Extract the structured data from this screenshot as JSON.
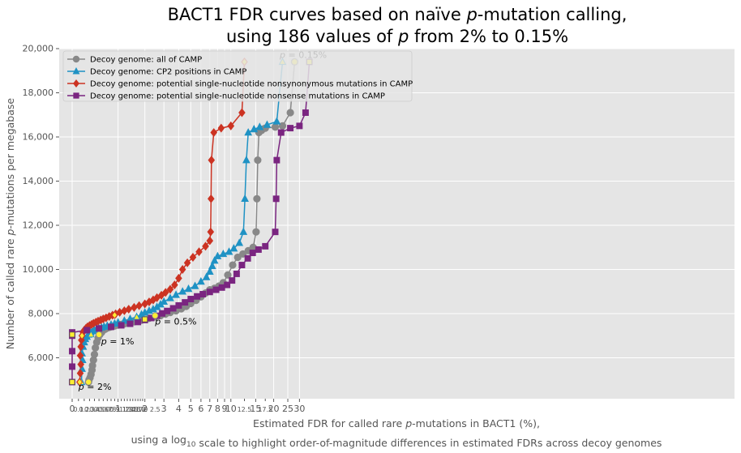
{
  "chart_data": {
    "type": "line",
    "title_line1": "BACT1 FDR curves based on naïve p-mutation calling,",
    "title_line2": "using 186 values of p from 2% to 0.15%",
    "xlabel_line1": "Estimated FDR for called rare p-mutations in BACT1 (%),",
    "xlabel_line2": "using a log10 scale to highlight order-of-magnitude differences in estimated FDRs across decoy genomes",
    "ylabel": "Number of called rare p-mutations per megabase",
    "x_scale": "log10(1 + FDR)",
    "ylim": [
      4300,
      20000
    ],
    "yticks": [
      {
        "value": 6000,
        "label": "6,000"
      },
      {
        "value": 8000,
        "label": "8,000"
      },
      {
        "value": 10000,
        "label": "10,000"
      },
      {
        "value": 12000,
        "label": "12,000"
      },
      {
        "value": 14000,
        "label": "14,000"
      },
      {
        "value": 16000,
        "label": "16,000"
      },
      {
        "value": 18000,
        "label": "18,000"
      },
      {
        "value": 20000,
        "label": "20,000"
      }
    ],
    "xticks_major": [
      {
        "value": 0,
        "label": "0"
      },
      {
        "value": 1,
        "label": "1"
      },
      {
        "value": 2,
        "label": "2"
      },
      {
        "value": 3,
        "label": "3"
      },
      {
        "value": 4,
        "label": "4"
      },
      {
        "value": 5,
        "label": "5"
      },
      {
        "value": 6,
        "label": "6"
      },
      {
        "value": 7,
        "label": "7"
      },
      {
        "value": 8,
        "label": "8"
      },
      {
        "value": 9,
        "label": "9"
      },
      {
        "value": 10,
        "label": "10"
      },
      {
        "value": 15,
        "label": "15"
      },
      {
        "value": 20,
        "label": "20"
      },
      {
        "value": 25,
        "label": "25"
      },
      {
        "value": 30,
        "label": "30"
      }
    ],
    "xticks_minor": [
      {
        "value": 0.1,
        "label": "0.1"
      },
      {
        "value": 0.2,
        "label": "0.2"
      },
      {
        "value": 0.3,
        "label": "0.3"
      },
      {
        "value": 0.4,
        "label": "0.4"
      },
      {
        "value": 0.5,
        "label": "0.5"
      },
      {
        "value": 0.6,
        "label": "0.6"
      },
      {
        "value": 0.7,
        "label": "0.7"
      },
      {
        "value": 0.8,
        "label": "0.8"
      },
      {
        "value": 0.9,
        "label": "0.9"
      },
      {
        "value": 1.1,
        "label": "1.1"
      },
      {
        "value": 1.2,
        "label": "1.2"
      },
      {
        "value": 1.3,
        "label": "1.3"
      },
      {
        "value": 1.4,
        "label": "1.4"
      },
      {
        "value": 1.5,
        "label": "1.5"
      },
      {
        "value": 1.6,
        "label": "1.6"
      },
      {
        "value": 1.7,
        "label": "1.7"
      },
      {
        "value": 1.8,
        "label": "1.8"
      },
      {
        "value": 1.9,
        "label": "1.9"
      },
      {
        "value": 2.5,
        "label": "2.5"
      },
      {
        "value": 12.5,
        "label": "12.5"
      },
      {
        "value": 17.5,
        "label": "17.5"
      }
    ],
    "grid": true,
    "legend_position": "top-left",
    "annotations": [
      {
        "text": "p = 2%",
        "x": 0.1,
        "y": 4550
      },
      {
        "text": "p = 1%",
        "x": 0.55,
        "y": 6600
      },
      {
        "text": "p = 0.5%",
        "x": 2.5,
        "y": 7500
      },
      {
        "text": "p = 0.15%",
        "x": 22,
        "y": 19570
      }
    ],
    "series": [
      {
        "name": "Decoy genome: all of CAMP",
        "color": "#888888",
        "marker": "circle",
        "x": [
          0.28,
          0.29,
          0.31,
          0.33,
          0.35,
          0.36,
          0.38,
          0.4,
          0.42,
          0.45,
          0.48,
          0.52,
          0.56,
          0.6,
          0.65,
          0.7,
          0.76,
          0.82,
          0.9,
          1.0,
          1.1,
          1.2,
          1.3,
          1.4,
          1.55,
          1.7,
          1.85,
          2.0,
          2.2,
          2.5,
          2.8,
          3.1,
          3.4,
          3.8,
          4.2,
          4.6,
          5.0,
          5.5,
          6.0,
          6.5,
          7.0,
          7.6,
          8.2,
          8.8,
          9.5,
          10.3,
          11.2,
          12.2,
          13.3,
          14.4,
          15.1,
          15.3,
          15.5,
          15.8,
          16.5,
          17.5,
          20.5,
          23.0,
          26.0,
          27.8
        ],
        "y": [
          4900,
          5000,
          5100,
          5250,
          5450,
          5650,
          5900,
          6150,
          6450,
          6700,
          6900,
          7050,
          7150,
          7250,
          7300,
          7350,
          7380,
          7410,
          7440,
          7480,
          7510,
          7540,
          7570,
          7600,
          7630,
          7660,
          7700,
          7740,
          7790,
          7850,
          7910,
          7980,
          8050,
          8130,
          8220,
          8330,
          8460,
          8600,
          8760,
          8930,
          9080,
          9150,
          9250,
          9400,
          9750,
          10200,
          10550,
          10700,
          10850,
          11000,
          11700,
          13200,
          14950,
          16200,
          16300,
          16400,
          16450,
          16500,
          17100,
          19400
        ]
      },
      {
        "name": "Decoy genome: CP2 positions in CAMP",
        "color": "#1f92c4",
        "marker": "triangle",
        "x": [
          0.15,
          0.16,
          0.17,
          0.16,
          0.18,
          0.2,
          0.22,
          0.25,
          0.28,
          0.32,
          0.36,
          0.4,
          0.45,
          0.5,
          0.56,
          0.62,
          0.7,
          0.8,
          0.9,
          1.0,
          1.2,
          1.4,
          1.65,
          1.85,
          2.0,
          2.2,
          2.4,
          2.6,
          2.8,
          3.0,
          3.4,
          3.8,
          4.3,
          4.8,
          5.4,
          6.0,
          6.6,
          7.0,
          7.3,
          7.6,
          8.0,
          8.8,
          9.7,
          10.5,
          11.5,
          12.3,
          12.6,
          12.9,
          13.3,
          14.6,
          16.0,
          18.0,
          21.0,
          23.0
        ],
        "y": [
          4900,
          5500,
          5900,
          6200,
          6500,
          6700,
          6850,
          6950,
          7050,
          7150,
          7200,
          7260,
          7300,
          7330,
          7370,
          7410,
          7450,
          7500,
          7550,
          7600,
          7680,
          7760,
          7850,
          7960,
          8050,
          8130,
          8200,
          8300,
          8420,
          8540,
          8700,
          8850,
          9000,
          9120,
          9250,
          9450,
          9650,
          9900,
          10150,
          10400,
          10600,
          10700,
          10800,
          10950,
          11200,
          11700,
          13200,
          14950,
          16200,
          16350,
          16450,
          16550,
          16700,
          19400
        ]
      },
      {
        "name": "Decoy genome: potential single-nucleotide nonsynonymous mutations in CAMP",
        "color": "#cc3322",
        "marker": "diamond",
        "x": [
          0.12,
          0.13,
          0.14,
          0.13,
          0.14,
          0.15,
          0.16,
          0.18,
          0.2,
          0.23,
          0.26,
          0.3,
          0.34,
          0.38,
          0.43,
          0.48,
          0.54,
          0.6,
          0.67,
          0.75,
          0.84,
          0.93,
          1.05,
          1.2,
          1.35,
          1.55,
          1.75,
          2.0,
          2.2,
          2.4,
          2.6,
          2.85,
          3.1,
          3.4,
          3.7,
          4.0,
          4.3,
          4.7,
          5.2,
          5.8,
          6.5,
          7.0,
          7.1,
          7.15,
          7.2,
          7.5,
          8.5,
          10.0,
          12.0,
          12.5
        ],
        "y": [
          4900,
          5300,
          5700,
          6100,
          6500,
          6800,
          7000,
          7150,
          7250,
          7330,
          7400,
          7460,
          7510,
          7560,
          7610,
          7660,
          7710,
          7760,
          7810,
          7870,
          7930,
          7990,
          8060,
          8130,
          8200,
          8280,
          8360,
          8440,
          8530,
          8620,
          8720,
          8830,
          8960,
          9100,
          9300,
          9600,
          10000,
          10300,
          10550,
          10800,
          11050,
          11300,
          11700,
          13200,
          14950,
          16200,
          16400,
          16500,
          17100,
          19400
        ]
      },
      {
        "name": "Decoy genome: potential single-nucleotide nonsense mutations in CAMP",
        "color": "#7a2580",
        "marker": "square",
        "x": [
          0,
          0,
          0,
          0,
          0,
          0.25,
          0.5,
          0.8,
          1.1,
          1.4,
          1.7,
          2.0,
          2.3,
          2.6,
          2.9,
          3.2,
          3.6,
          4.0,
          4.5,
          5.0,
          5.6,
          6.2,
          7.0,
          7.8,
          8.6,
          9.4,
          10.2,
          11.0,
          12.0,
          13.2,
          14.3,
          15.7,
          17.5,
          20.5,
          20.8,
          21.0,
          22.5,
          26.0,
          30.0,
          33.0,
          35.0
        ],
        "y": [
          4900,
          5600,
          6300,
          7000,
          7150,
          7250,
          7330,
          7400,
          7470,
          7540,
          7620,
          7710,
          7800,
          7900,
          8010,
          8120,
          8240,
          8370,
          8510,
          8660,
          8780,
          8880,
          8980,
          9080,
          9180,
          9300,
          9500,
          9800,
          10200,
          10500,
          10750,
          10900,
          11050,
          11700,
          13200,
          14950,
          16200,
          16400,
          16500,
          17100,
          19400
        ]
      }
    ],
    "highlight_points": [
      {
        "x": 0.15,
        "y": 4900,
        "series": 1
      },
      {
        "x": 0.28,
        "y": 4900,
        "series": 0
      },
      {
        "x": 0.12,
        "y": 4900,
        "series": 2
      },
      {
        "x": 0,
        "y": 4900,
        "series": 3
      },
      {
        "x": 0.16,
        "y": 7000,
        "series": 2
      },
      {
        "x": 0.33,
        "y": 7050,
        "series": 1
      },
      {
        "x": 0,
        "y": 7050,
        "series": 3
      },
      {
        "x": 0.5,
        "y": 7050,
        "series": 0
      },
      {
        "x": 0.9,
        "y": 7930,
        "series": 2
      },
      {
        "x": 1.65,
        "y": 7850,
        "series": 1
      },
      {
        "x": 2.0,
        "y": 7740,
        "series": 3
      },
      {
        "x": 2.5,
        "y": 7910,
        "series": 0
      },
      {
        "x": 12.5,
        "y": 19400,
        "series": 2
      },
      {
        "x": 23.0,
        "y": 19400,
        "series": 1
      },
      {
        "x": 27.8,
        "y": 19400,
        "series": 0
      },
      {
        "x": 35.0,
        "y": 19400,
        "series": 3
      }
    ]
  }
}
